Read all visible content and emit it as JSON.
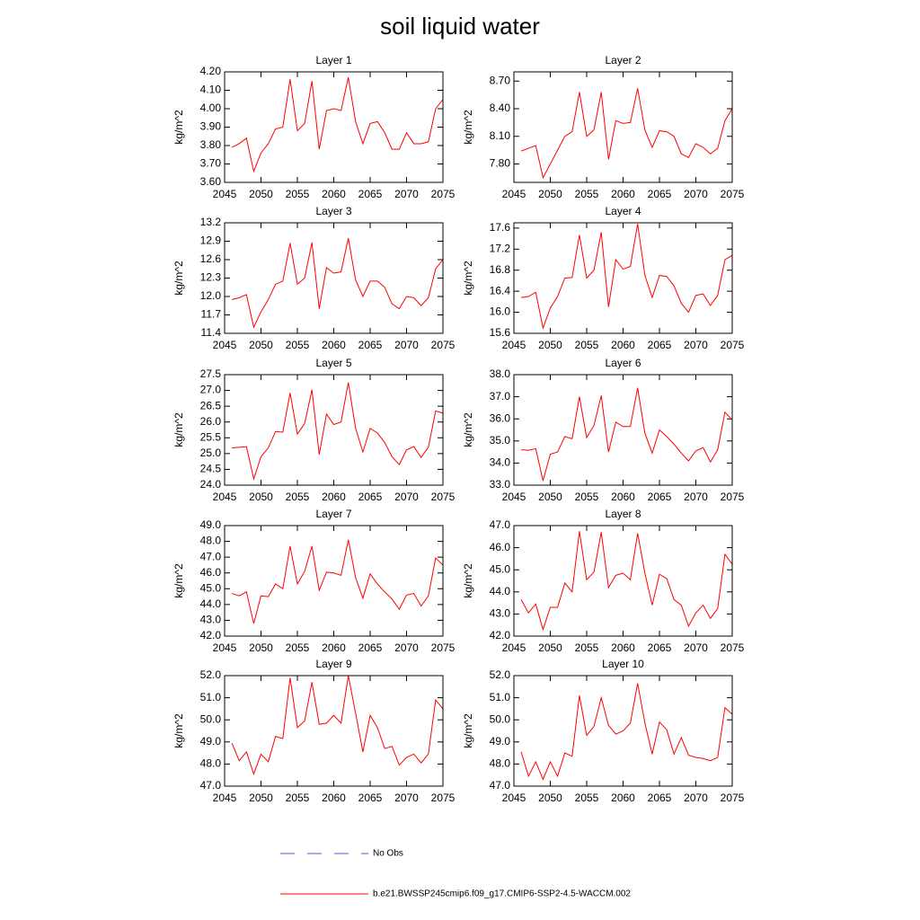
{
  "title": "soil liquid water",
  "legend": [
    {
      "name": "No Obs",
      "color": "#4a5bd0",
      "dashed": true
    },
    {
      "name": "b.e21.BWSSP245cmip6.f09_g17.CMIP6-SSP2-4.5-WACCM.002",
      "color": "#ff0000"
    }
  ],
  "chart_data": [
    {
      "type": "line",
      "title": "Layer 1",
      "y_label": "kg/m^2",
      "xlim": [
        2045,
        2075
      ],
      "xticks": [
        2045,
        2050,
        2055,
        2060,
        2065,
        2070,
        2075
      ],
      "ylim": [
        3.6,
        4.2
      ],
      "yticks": [
        {
          "value": 3.6,
          "label": "3.60"
        },
        {
          "value": 3.7,
          "label": "3.70"
        },
        {
          "value": 3.8,
          "label": "3.80"
        },
        {
          "value": 3.9,
          "label": "3.90"
        },
        {
          "value": 4.0,
          "label": "4.00"
        },
        {
          "value": 4.1,
          "label": "4.10"
        },
        {
          "value": 4.2,
          "label": "4.20"
        }
      ],
      "x": [
        2046,
        2047,
        2048,
        2049,
        2050,
        2051,
        2052,
        2053,
        2054,
        2055,
        2056,
        2057,
        2058,
        2059,
        2060,
        2061,
        2062,
        2063,
        2064,
        2065,
        2066,
        2067,
        2068,
        2069,
        2070,
        2071,
        2072,
        2073,
        2074,
        2075
      ],
      "series": [
        {
          "color": "#ff0000",
          "values": [
            3.79,
            3.81,
            3.84,
            3.66,
            3.76,
            3.81,
            3.89,
            3.9,
            4.16,
            3.88,
            3.92,
            4.15,
            3.78,
            3.99,
            4.0,
            3.99,
            4.17,
            3.93,
            3.81,
            3.92,
            3.93,
            3.87,
            3.78,
            3.78,
            3.87,
            3.81,
            3.81,
            3.82,
            4.0,
            4.05
          ]
        }
      ]
    },
    {
      "type": "line",
      "title": "Layer 2",
      "y_label": "kg/m^2",
      "xlim": [
        2045,
        2075
      ],
      "xticks": [
        2045,
        2050,
        2055,
        2060,
        2065,
        2070,
        2075
      ],
      "ylim": [
        7.6,
        8.8
      ],
      "yticks": [
        {
          "value": 7.8,
          "label": "7.80"
        },
        {
          "value": 8.1,
          "label": "8.10"
        },
        {
          "value": 8.4,
          "label": "8.40"
        },
        {
          "value": 8.7,
          "label": "8.70"
        }
      ],
      "x": [
        2046,
        2047,
        2048,
        2049,
        2050,
        2051,
        2052,
        2053,
        2054,
        2055,
        2056,
        2057,
        2058,
        2059,
        2060,
        2061,
        2062,
        2063,
        2064,
        2065,
        2066,
        2067,
        2068,
        2069,
        2070,
        2071,
        2072,
        2073,
        2074,
        2075
      ],
      "series": [
        {
          "color": "#ff0000",
          "values": [
            7.94,
            7.97,
            8.0,
            7.65,
            7.8,
            7.95,
            8.1,
            8.15,
            8.58,
            8.1,
            8.17,
            8.58,
            7.85,
            8.27,
            8.24,
            8.25,
            8.62,
            8.17,
            7.98,
            8.16,
            8.15,
            8.1,
            7.91,
            7.87,
            8.02,
            7.98,
            7.91,
            7.97,
            8.27,
            8.4
          ]
        }
      ]
    },
    {
      "type": "line",
      "title": "Layer 3",
      "y_label": "kg/m^2",
      "xlim": [
        2045,
        2075
      ],
      "xticks": [
        2045,
        2050,
        2055,
        2060,
        2065,
        2070,
        2075
      ],
      "ylim": [
        11.4,
        13.2
      ],
      "yticks": [
        11.4,
        11.7,
        {
          "value": 12.0,
          "label": "12.0"
        },
        12.3,
        12.6,
        12.9,
        13.2
      ],
      "x": [
        2046,
        2047,
        2048,
        2049,
        2050,
        2051,
        2052,
        2053,
        2054,
        2055,
        2056,
        2057,
        2058,
        2059,
        2060,
        2061,
        2062,
        2063,
        2064,
        2065,
        2066,
        2067,
        2068,
        2069,
        2070,
        2071,
        2072,
        2073,
        2074,
        2075
      ],
      "series": [
        {
          "color": "#ff0000",
          "values": [
            11.95,
            11.98,
            12.03,
            11.5,
            11.75,
            11.95,
            12.2,
            12.25,
            12.87,
            12.2,
            12.3,
            12.88,
            11.8,
            12.47,
            12.38,
            12.4,
            12.95,
            12.27,
            12.0,
            12.25,
            12.25,
            12.15,
            11.88,
            11.8,
            12.0,
            11.98,
            11.85,
            11.98,
            12.45,
            12.6
          ]
        }
      ]
    },
    {
      "type": "line",
      "title": "Layer 4",
      "y_label": "kg/m^2",
      "xlim": [
        2045,
        2075
      ],
      "xticks": [
        2045,
        2050,
        2055,
        2060,
        2065,
        2070,
        2075
      ],
      "ylim": [
        15.6,
        17.7
      ],
      "yticks": [
        15.6,
        {
          "value": 16.0,
          "label": "16.0"
        },
        16.4,
        16.8,
        17.2,
        17.6
      ],
      "x": [
        2046,
        2047,
        2048,
        2049,
        2050,
        2051,
        2052,
        2053,
        2054,
        2055,
        2056,
        2057,
        2058,
        2059,
        2060,
        2061,
        2062,
        2063,
        2064,
        2065,
        2066,
        2067,
        2068,
        2069,
        2070,
        2071,
        2072,
        2073,
        2074,
        2075
      ],
      "series": [
        {
          "color": "#ff0000",
          "values": [
            16.28,
            16.3,
            16.38,
            15.7,
            16.08,
            16.3,
            16.65,
            16.66,
            17.47,
            16.65,
            16.8,
            17.52,
            16.1,
            17.0,
            16.82,
            16.87,
            17.68,
            16.7,
            16.28,
            16.7,
            16.68,
            16.5,
            16.17,
            16.0,
            16.32,
            16.35,
            16.13,
            16.32,
            17.0,
            17.08
          ]
        }
      ]
    },
    {
      "type": "line",
      "title": "Layer 5",
      "y_label": "kg/m^2",
      "xlim": [
        2045,
        2075
      ],
      "xticks": [
        2045,
        2050,
        2055,
        2060,
        2065,
        2070,
        2075
      ],
      "ylim": [
        24,
        27.5
      ],
      "yticks": [
        {
          "value": 24,
          "label": "24.0"
        },
        24.5,
        {
          "value": 25,
          "label": "25.0"
        },
        25.5,
        {
          "value": 26,
          "label": "26.0"
        },
        26.5,
        {
          "value": 27,
          "label": "27.0"
        },
        27.5
      ],
      "x": [
        2046,
        2047,
        2048,
        2049,
        2050,
        2051,
        2052,
        2053,
        2054,
        2055,
        2056,
        2057,
        2058,
        2059,
        2060,
        2061,
        2062,
        2063,
        2064,
        2065,
        2066,
        2067,
        2068,
        2069,
        2070,
        2071,
        2072,
        2073,
        2074,
        2075
      ],
      "series": [
        {
          "color": "#ff0000",
          "values": [
            25.18,
            25.2,
            25.22,
            24.2,
            24.9,
            25.18,
            25.7,
            25.68,
            26.92,
            25.62,
            25.95,
            27.02,
            24.97,
            26.25,
            25.92,
            26.0,
            27.25,
            25.8,
            25.05,
            25.8,
            25.65,
            25.35,
            24.9,
            24.65,
            25.12,
            25.22,
            24.88,
            25.2,
            26.35,
            26.28
          ]
        }
      ]
    },
    {
      "type": "line",
      "title": "Layer 6",
      "y_label": "kg/m^2",
      "xlim": [
        2045,
        2075
      ],
      "xticks": [
        2045,
        2050,
        2055,
        2060,
        2065,
        2070,
        2075
      ],
      "ylim": [
        33,
        38
      ],
      "yticks": [
        {
          "value": 33,
          "label": "33.0"
        },
        {
          "value": 34,
          "label": "34.0"
        },
        {
          "value": 35,
          "label": "35.0"
        },
        {
          "value": 36,
          "label": "36.0"
        },
        {
          "value": 37,
          "label": "37.0"
        },
        {
          "value": 38,
          "label": "38.0"
        }
      ],
      "x": [
        2046,
        2047,
        2048,
        2049,
        2050,
        2051,
        2052,
        2053,
        2054,
        2055,
        2056,
        2057,
        2058,
        2059,
        2060,
        2061,
        2062,
        2063,
        2064,
        2065,
        2066,
        2067,
        2068,
        2069,
        2070,
        2071,
        2072,
        2073,
        2074,
        2075
      ],
      "series": [
        {
          "color": "#ff0000",
          "values": [
            34.6,
            34.58,
            34.65,
            33.2,
            34.4,
            34.5,
            35.2,
            35.1,
            37.0,
            35.15,
            35.7,
            37.05,
            34.5,
            35.85,
            35.65,
            35.65,
            37.4,
            35.35,
            34.45,
            35.5,
            35.2,
            34.85,
            34.45,
            34.1,
            34.55,
            34.7,
            34.05,
            34.6,
            36.3,
            35.95
          ]
        }
      ]
    },
    {
      "type": "line",
      "title": "Layer 7",
      "y_label": "kg/m^2",
      "xlim": [
        2045,
        2075
      ],
      "xticks": [
        2045,
        2050,
        2055,
        2060,
        2065,
        2070,
        2075
      ],
      "ylim": [
        42,
        49
      ],
      "yticks": [
        {
          "value": 42,
          "label": "42.0"
        },
        {
          "value": 43,
          "label": "43.0"
        },
        {
          "value": 44,
          "label": "44.0"
        },
        {
          "value": 45,
          "label": "45.0"
        },
        {
          "value": 46,
          "label": "46.0"
        },
        {
          "value": 47,
          "label": "47.0"
        },
        {
          "value": 48,
          "label": "48.0"
        },
        {
          "value": 49,
          "label": "49.0"
        }
      ],
      "x": [
        2046,
        2047,
        2048,
        2049,
        2050,
        2051,
        2052,
        2053,
        2054,
        2055,
        2056,
        2057,
        2058,
        2059,
        2060,
        2061,
        2062,
        2063,
        2064,
        2065,
        2066,
        2067,
        2068,
        2069,
        2070,
        2071,
        2072,
        2073,
        2074,
        2075
      ],
      "series": [
        {
          "color": "#ff0000",
          "values": [
            44.7,
            44.55,
            44.8,
            42.8,
            44.55,
            44.5,
            45.3,
            45.0,
            47.7,
            45.3,
            46.1,
            47.7,
            44.9,
            46.05,
            46.0,
            45.85,
            48.1,
            45.7,
            44.4,
            45.95,
            45.3,
            44.8,
            44.35,
            43.7,
            44.6,
            44.7,
            43.9,
            44.55,
            46.95,
            46.5
          ]
        }
      ]
    },
    {
      "type": "line",
      "title": "Layer 8",
      "y_label": "kg/m^2",
      "xlim": [
        2045,
        2075
      ],
      "xticks": [
        2045,
        2050,
        2055,
        2060,
        2065,
        2070,
        2075
      ],
      "ylim": [
        42,
        47
      ],
      "yticks": [
        {
          "value": 42,
          "label": "42.0"
        },
        {
          "value": 43,
          "label": "43.0"
        },
        {
          "value": 44,
          "label": "44.0"
        },
        {
          "value": 45,
          "label": "45.0"
        },
        {
          "value": 46,
          "label": "46.0"
        },
        {
          "value": 47,
          "label": "47.0"
        }
      ],
      "x": [
        2046,
        2047,
        2048,
        2049,
        2050,
        2051,
        2052,
        2053,
        2054,
        2055,
        2056,
        2057,
        2058,
        2059,
        2060,
        2061,
        2062,
        2063,
        2064,
        2065,
        2066,
        2067,
        2068,
        2069,
        2070,
        2071,
        2072,
        2073,
        2074,
        2075
      ],
      "series": [
        {
          "color": "#ff0000",
          "values": [
            43.65,
            43.05,
            43.45,
            42.3,
            43.3,
            43.3,
            44.4,
            44.0,
            46.75,
            44.55,
            44.9,
            46.7,
            44.2,
            44.75,
            44.85,
            44.55,
            46.65,
            44.85,
            43.4,
            44.8,
            44.6,
            43.65,
            43.4,
            42.45,
            43.05,
            43.4,
            42.8,
            43.25,
            45.7,
            45.25
          ]
        }
      ]
    },
    {
      "type": "line",
      "title": "Layer 9",
      "y_label": "kg/m^2",
      "xlim": [
        2045,
        2075
      ],
      "xticks": [
        2045,
        2050,
        2055,
        2060,
        2065,
        2070,
        2075
      ],
      "ylim": [
        47,
        52
      ],
      "yticks": [
        {
          "value": 47,
          "label": "47.0"
        },
        {
          "value": 48,
          "label": "48.0"
        },
        {
          "value": 49,
          "label": "49.0"
        },
        {
          "value": 50,
          "label": "50.0"
        },
        {
          "value": 51,
          "label": "51.0"
        },
        {
          "value": 52,
          "label": "52.0"
        }
      ],
      "x": [
        2046,
        2047,
        2048,
        2049,
        2050,
        2051,
        2052,
        2053,
        2054,
        2055,
        2056,
        2057,
        2058,
        2059,
        2060,
        2061,
        2062,
        2063,
        2064,
        2065,
        2066,
        2067,
        2068,
        2069,
        2070,
        2071,
        2072,
        2073,
        2074,
        2075
      ],
      "series": [
        {
          "color": "#ff0000",
          "values": [
            48.95,
            48.15,
            48.55,
            47.55,
            48.45,
            48.1,
            49.25,
            49.15,
            51.9,
            49.65,
            49.95,
            51.7,
            49.8,
            49.85,
            50.2,
            49.85,
            52.0,
            50.3,
            48.55,
            50.2,
            49.65,
            48.7,
            48.8,
            47.95,
            48.3,
            48.45,
            48.05,
            48.45,
            50.9,
            50.5
          ]
        }
      ]
    },
    {
      "type": "line",
      "title": "Layer 10",
      "y_label": "kg/m^2",
      "xlim": [
        2045,
        2075
      ],
      "xticks": [
        2045,
        2050,
        2055,
        2060,
        2065,
        2070,
        2075
      ],
      "ylim": [
        47,
        52
      ],
      "yticks": [
        {
          "value": 47,
          "label": "47.0"
        },
        {
          "value": 48,
          "label": "48.0"
        },
        {
          "value": 49,
          "label": "49.0"
        },
        {
          "value": 50,
          "label": "50.0"
        },
        {
          "value": 51,
          "label": "51.0"
        },
        {
          "value": 52,
          "label": "52.0"
        }
      ],
      "x": [
        2046,
        2047,
        2048,
        2049,
        2050,
        2051,
        2052,
        2053,
        2054,
        2055,
        2056,
        2057,
        2058,
        2059,
        2060,
        2061,
        2062,
        2063,
        2064,
        2065,
        2066,
        2067,
        2068,
        2069,
        2070,
        2071,
        2072,
        2073,
        2074,
        2075
      ],
      "series": [
        {
          "color": "#ff0000",
          "values": [
            48.55,
            47.45,
            48.1,
            47.3,
            48.1,
            47.45,
            48.5,
            48.35,
            51.1,
            49.3,
            49.7,
            51.0,
            49.75,
            49.35,
            49.5,
            49.85,
            51.65,
            49.85,
            48.45,
            49.9,
            49.55,
            48.45,
            49.2,
            48.4,
            48.3,
            48.25,
            48.15,
            48.3,
            50.55,
            50.25
          ]
        }
      ]
    }
  ]
}
